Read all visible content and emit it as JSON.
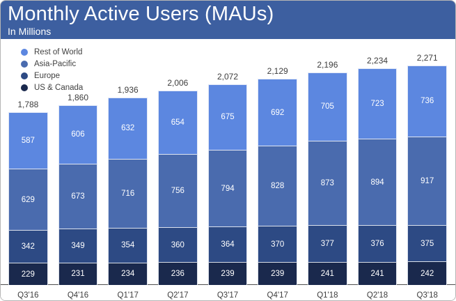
{
  "header": {
    "title": "Monthly Active Users (MAUs)",
    "subtitle": "In Millions"
  },
  "colors": {
    "banner": "#3d5fa0",
    "axis_line": "#4d4d4d",
    "total_label_text": "#3d3d3d",
    "segment_label_text": "#ffffff",
    "rest_of_world": "#5c87e0",
    "asia_pacific": "#4a6bae",
    "europe": "#2d4a84",
    "us_canada": "#1a294d"
  },
  "chart_data": {
    "type": "bar",
    "stacked": true,
    "title": "Monthly Active Users (MAUs)",
    "subtitle": "In Millions",
    "xlabel": "",
    "ylabel": "",
    "grid": false,
    "y_axis_shown": false,
    "legend_position": "top-left",
    "categories": [
      "Q3'16",
      "Q4'16",
      "Q1'17",
      "Q2'17",
      "Q3'17",
      "Q4'17",
      "Q1'18",
      "Q2'18",
      "Q3'18"
    ],
    "totals": [
      1788,
      1860,
      1936,
      2006,
      2072,
      2129,
      2196,
      2234,
      2271
    ],
    "series": [
      {
        "name": "Rest of World",
        "color": "#5c87e0",
        "values": [
          587,
          606,
          632,
          654,
          675,
          692,
          705,
          723,
          736
        ]
      },
      {
        "name": "Asia-Pacific",
        "color": "#4a6bae",
        "values": [
          629,
          673,
          716,
          756,
          794,
          828,
          873,
          894,
          917
        ]
      },
      {
        "name": "Europe",
        "color": "#2d4a84",
        "values": [
          342,
          349,
          354,
          360,
          364,
          370,
          377,
          376,
          375
        ]
      },
      {
        "name": "US & Canada",
        "color": "#1a294d",
        "values": [
          229,
          231,
          234,
          236,
          239,
          239,
          241,
          241,
          242
        ]
      }
    ]
  }
}
